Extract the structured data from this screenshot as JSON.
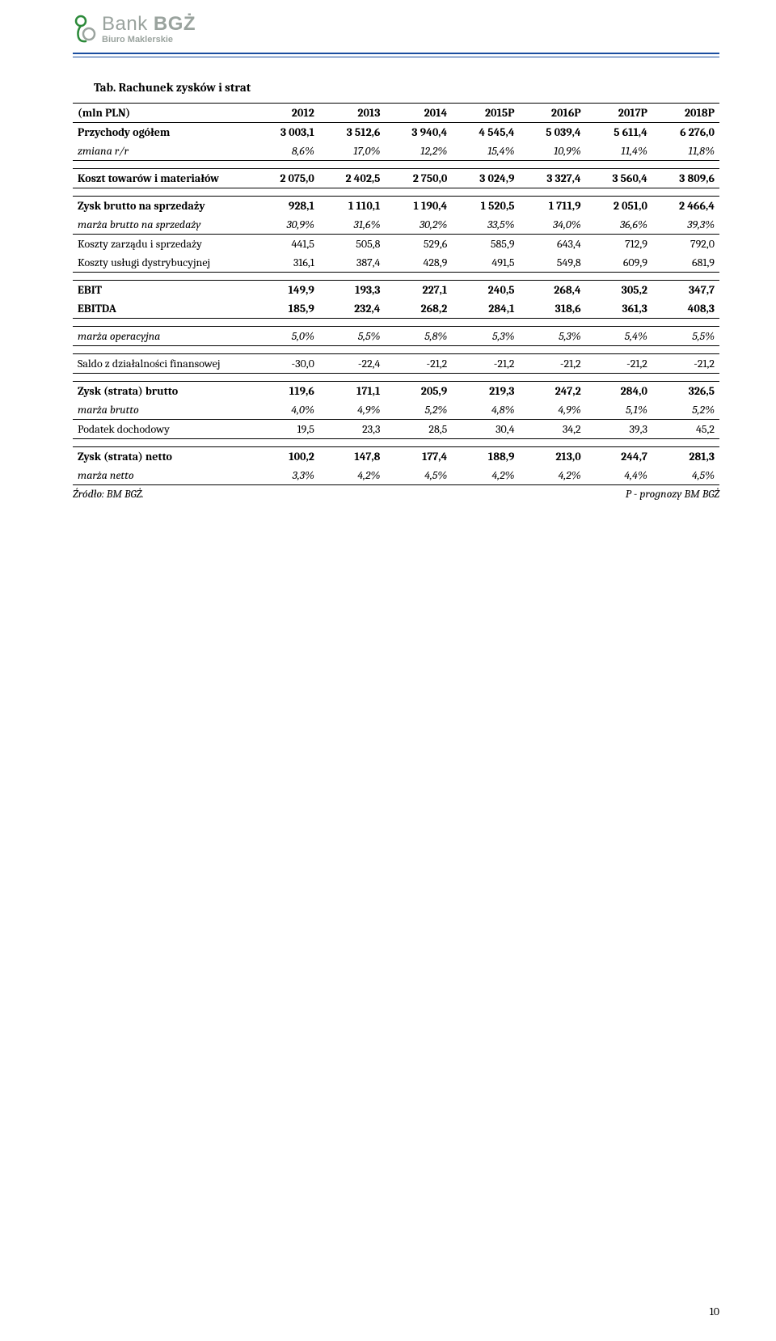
{
  "logo": {
    "bank": "Bank",
    "bgz": "BGŻ",
    "sub": "Biuro Maklerskie"
  },
  "title": "Tab. Rachunek zysków i strat",
  "headers": [
    "(mln PLN)",
    "2012",
    "2013",
    "2014",
    "2015P",
    "2016P",
    "2017P",
    "2018P"
  ],
  "rows": [
    {
      "type": "data",
      "bold": true,
      "section_top": true,
      "cells": [
        "Przychody ogółem",
        "3 003,1",
        "3 512,6",
        "3 940,4",
        "4 545,4",
        "5 039,4",
        "5 611,4",
        "6 276,0"
      ]
    },
    {
      "type": "data",
      "italic": true,
      "section_bottom": true,
      "cells": [
        "zmiana r/r",
        "8,6%",
        "17,0%",
        "12,2%",
        "15,4%",
        "10,9%",
        "11,4%",
        "11,8%"
      ]
    },
    {
      "type": "spacer"
    },
    {
      "type": "data",
      "bold": true,
      "section_top": true,
      "section_bottom": true,
      "cells": [
        "Koszt towarów i materiałów",
        "2 075,0",
        "2 402,5",
        "2 750,0",
        "3 024,9",
        "3 327,4",
        "3 560,4",
        "3 809,6"
      ]
    },
    {
      "type": "spacer"
    },
    {
      "type": "data",
      "bold": true,
      "section_top": true,
      "cells": [
        "Zysk brutto na sprzedaży",
        "928,1",
        "1 110,1",
        "1 190,4",
        "1 520,5",
        "1 711,9",
        "2 051,0",
        "2 466,4"
      ]
    },
    {
      "type": "data",
      "italic": true,
      "section_bottom": true,
      "cells": [
        "marża brutto na sprzedaży",
        "30,9%",
        "31,6%",
        "30,2%",
        "33,5%",
        "34,0%",
        "36,6%",
        "39,3%"
      ]
    },
    {
      "type": "data",
      "cells": [
        "Koszty zarządu i sprzedaży",
        "441,5",
        "505,8",
        "529,6",
        "585,9",
        "643,4",
        "712,9",
        "792,0"
      ]
    },
    {
      "type": "data",
      "section_bottom": true,
      "cells": [
        "Koszty usługi dystrybucyjnej",
        "316,1",
        "387,4",
        "428,9",
        "491,5",
        "549,8",
        "609,9",
        "681,9"
      ]
    },
    {
      "type": "spacer"
    },
    {
      "type": "data",
      "bold": true,
      "section_top": true,
      "cells": [
        "EBIT",
        "149,9",
        "193,3",
        "227,1",
        "240,5",
        "268,4",
        "305,2",
        "347,7"
      ]
    },
    {
      "type": "data",
      "bold": true,
      "section_bottom": true,
      "cells": [
        "EBITDA",
        "185,9",
        "232,4",
        "268,2",
        "284,1",
        "318,6",
        "361,3",
        "408,3"
      ]
    },
    {
      "type": "spacer"
    },
    {
      "type": "data",
      "italic": true,
      "section_top": true,
      "section_bottom": true,
      "cells": [
        "marża operacyjna",
        "5,0%",
        "5,5%",
        "5,8%",
        "5,3%",
        "5,3%",
        "5,4%",
        "5,5%"
      ]
    },
    {
      "type": "spacer"
    },
    {
      "type": "data",
      "section_top": true,
      "section_bottom": true,
      "cells": [
        "Saldo z działalności finansowej",
        "-30,0",
        "-22,4",
        "-21,2",
        "-21,2",
        "-21,2",
        "-21,2",
        "-21,2"
      ]
    },
    {
      "type": "spacer"
    },
    {
      "type": "data",
      "bold": true,
      "section_top": true,
      "cells": [
        "Zysk (strata) brutto",
        "119,6",
        "171,1",
        "205,9",
        "219,3",
        "247,2",
        "284,0",
        "326,5"
      ]
    },
    {
      "type": "data",
      "italic": true,
      "section_bottom": true,
      "cells": [
        "marża brutto",
        "4,0%",
        "4,9%",
        "5,2%",
        "4,8%",
        "4,9%",
        "5,1%",
        "5,2%"
      ]
    },
    {
      "type": "data",
      "section_bottom": true,
      "cells": [
        "Podatek dochodowy",
        "19,5",
        "23,3",
        "28,5",
        "30,4",
        "34,2",
        "39,3",
        "45,2"
      ]
    },
    {
      "type": "spacer"
    },
    {
      "type": "data",
      "bold": true,
      "section_top": true,
      "cells": [
        "Zysk (strata) netto",
        "100,2",
        "147,8",
        "177,4",
        "188,9",
        "213,0",
        "244,7",
        "281,3"
      ]
    },
    {
      "type": "data",
      "italic": true,
      "section_bottom": true,
      "cells": [
        "marża netto",
        "3,3%",
        "4,2%",
        "4,5%",
        "4,2%",
        "4,2%",
        "4,4%",
        "4,5%"
      ]
    }
  ],
  "source_left": "Źródło: BM BGŻ.",
  "source_right": "P - prognozy BM BGŻ",
  "page_number": "10",
  "colors": {
    "rule": "#1a4ea0",
    "logo_gray": "#9aa39e",
    "logo_green": "#2c8a3a"
  }
}
